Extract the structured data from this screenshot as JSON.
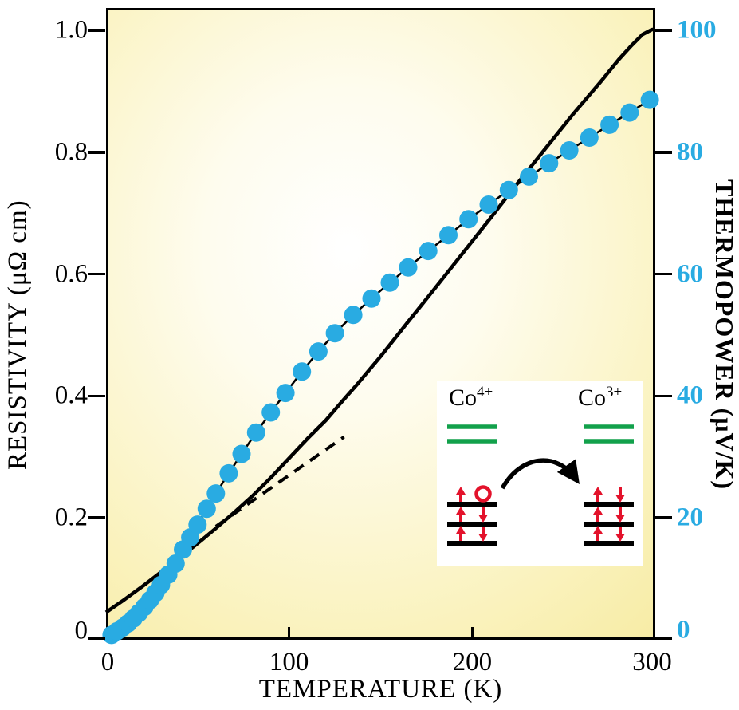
{
  "chart_data": {
    "type": "line+scatter",
    "title": "",
    "xlabel": "TEMPERATURE (K)",
    "xlim": [
      0,
      300
    ],
    "x_ticks": {
      "values": [
        0,
        100,
        200,
        300
      ],
      "labels": [
        "0",
        "100",
        "200",
        "300"
      ]
    },
    "grid": false,
    "left_axis": {
      "label": "RESISTIVITY (μΩ cm)",
      "tick_values": [
        0,
        0.2,
        0.4,
        0.6,
        0.8,
        1.0
      ],
      "tick_labels": [
        "0",
        "0.2",
        "0.4",
        "0.6",
        "0.8",
        "1.0"
      ],
      "lim": [
        0,
        1.04
      ],
      "color": "#000000"
    },
    "right_axis": {
      "label": "THERMOPOWER (μV/K)",
      "tick_values": [
        0,
        20,
        40,
        60,
        80,
        100
      ],
      "tick_labels": [
        "0",
        "20",
        "40",
        "60",
        "80",
        "100"
      ],
      "lim": [
        0,
        104
      ],
      "color": "#29ABE2"
    },
    "series": [
      {
        "name": "resistivity",
        "axis": "left",
        "kind": "line",
        "style": "solid",
        "color": "#000000",
        "points": [
          [
            0,
            0.045
          ],
          [
            10,
            0.066
          ],
          [
            20,
            0.088
          ],
          [
            30,
            0.111
          ],
          [
            40,
            0.134
          ],
          [
            50,
            0.158
          ],
          [
            60,
            0.183
          ],
          [
            70,
            0.209
          ],
          [
            80,
            0.236
          ],
          [
            90,
            0.266
          ],
          [
            100,
            0.298
          ],
          [
            110,
            0.33
          ],
          [
            120,
            0.36
          ],
          [
            128,
            0.388
          ],
          [
            138,
            0.422
          ],
          [
            150,
            0.465
          ],
          [
            165,
            0.522
          ],
          [
            180,
            0.578
          ],
          [
            195,
            0.635
          ],
          [
            210,
            0.692
          ],
          [
            225,
            0.75
          ],
          [
            240,
            0.806
          ],
          [
            255,
            0.862
          ],
          [
            270,
            0.915
          ],
          [
            280,
            0.952
          ],
          [
            287,
            0.975
          ],
          [
            293,
            0.993
          ],
          [
            298,
            1.001
          ],
          [
            300,
            1.002
          ]
        ]
      },
      {
        "name": "low-temperature-linear-extrapolation",
        "axis": "left",
        "kind": "line",
        "style": "dashed",
        "color": "#000000",
        "points": [
          [
            60,
            0.186
          ],
          [
            130,
            0.333
          ]
        ]
      },
      {
        "name": "thermopower",
        "axis": "right",
        "kind": "scatter",
        "marker": "circle",
        "color": "#29ABE2",
        "points": [
          [
            3,
            0.8
          ],
          [
            6,
            1.4
          ],
          [
            9,
            2.0
          ],
          [
            12,
            2.7
          ],
          [
            15,
            3.5
          ],
          [
            18,
            4.4
          ],
          [
            21,
            5.4
          ],
          [
            24,
            6.5
          ],
          [
            27,
            7.7
          ],
          [
            30,
            9.0
          ],
          [
            34,
            10.7
          ],
          [
            38,
            12.5
          ],
          [
            42,
            14.8
          ],
          [
            46,
            16.8
          ],
          [
            50,
            18.9
          ],
          [
            55,
            21.5
          ],
          [
            60,
            24.0
          ],
          [
            67,
            27.3
          ],
          [
            74,
            30.5
          ],
          [
            82,
            34.0
          ],
          [
            90,
            37.3
          ],
          [
            98,
            40.5
          ],
          [
            107,
            44.0
          ],
          [
            116,
            47.3
          ],
          [
            125,
            50.3
          ],
          [
            135,
            53.3
          ],
          [
            145,
            56.0
          ],
          [
            155,
            58.6
          ],
          [
            165,
            61.1
          ],
          [
            176,
            63.8
          ],
          [
            187,
            66.4
          ],
          [
            198,
            69.0
          ],
          [
            209,
            71.4
          ],
          [
            220,
            73.8
          ],
          [
            231,
            76.0
          ],
          [
            242,
            78.2
          ],
          [
            253,
            80.3
          ],
          [
            264,
            82.4
          ],
          [
            275,
            84.5
          ],
          [
            286,
            86.5
          ],
          [
            297,
            88.6
          ]
        ]
      }
    ],
    "legend": null
  },
  "inset": {
    "ions": [
      {
        "label_base": "Co",
        "label_sup": "4+",
        "levels": [
          [
            "up",
            "hole"
          ],
          [
            "up",
            "down"
          ],
          [
            "up",
            "down"
          ]
        ]
      },
      {
        "label_base": "Co",
        "label_sup": "3+",
        "levels": [
          [
            "up",
            "down"
          ],
          [
            "up",
            "down"
          ],
          [
            "up",
            "down"
          ]
        ]
      }
    ],
    "colors": {
      "upper_levels": "#12A14B",
      "lower_levels": "#000000",
      "spins": "#E3122B",
      "hop_arrow": "#000000",
      "box_bg": "#FFFFFF"
    }
  },
  "colors": {
    "accent_cyan": "#29ABE2",
    "plot_bg_yellow": "#F3E385",
    "plot_bg_light": "#FFFFFF",
    "frame": "#000000"
  }
}
